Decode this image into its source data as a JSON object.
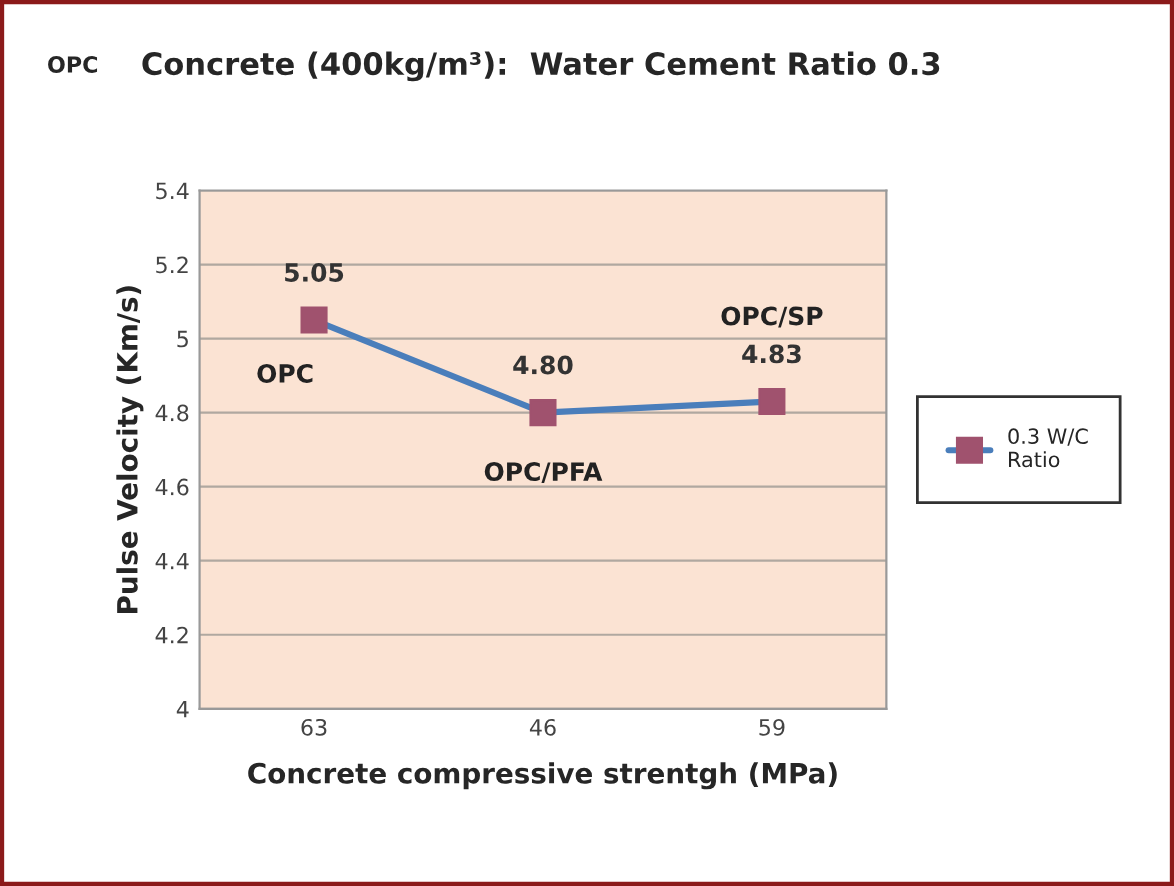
{
  "chart_data": {
    "type": "line",
    "title": "Concrete (400kg/m³):  Water Cement Ratio 0.3",
    "xlabel": "Concrete compressive strentgh (MPa)",
    "ylabel": "Pulse Velocity (Km/s)",
    "categories": [
      "63",
      "46",
      "59"
    ],
    "series": [
      {
        "name": "0.3 W/C Ratio",
        "color": "#4a7ebb",
        "values": [
          5.05,
          4.8,
          4.83
        ],
        "value_labels": [
          "5.05",
          "4.80",
          "4.83"
        ]
      }
    ],
    "annotations": [
      "OPC",
      {
        "text": "OPC",
        "x": "63",
        "y": 5.05
      },
      {
        "text": "OPC/PFA",
        "x": "46",
        "y": 4.8
      },
      {
        "text": "OPC/SP",
        "x": "59",
        "y": 4.83
      }
    ],
    "ylim": [
      4,
      5.4
    ],
    "yticks": [
      4,
      4.2,
      4.4,
      4.6,
      4.8,
      5,
      5.2,
      5.4
    ],
    "grid": "y",
    "legend": "right",
    "marker": "square",
    "line_style": "solid"
  }
}
